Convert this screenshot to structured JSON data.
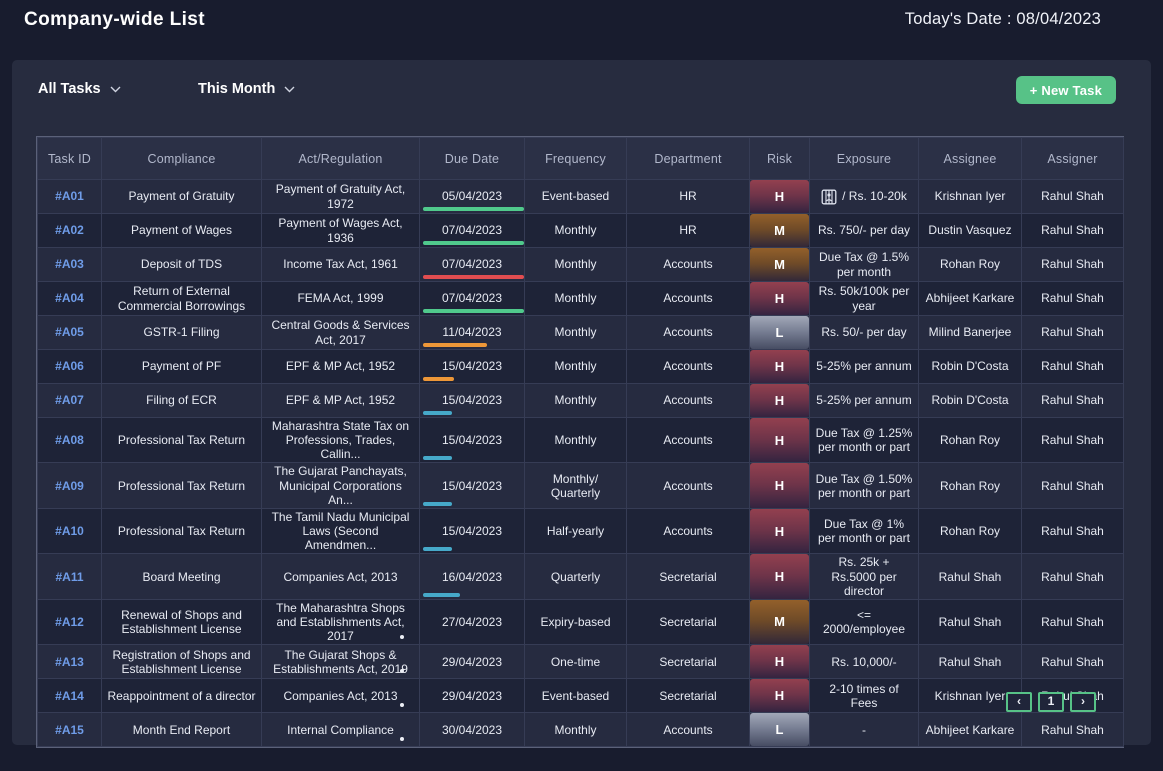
{
  "page": {
    "title": "Company-wide List",
    "date_label": "Today's Date : 08/04/2023"
  },
  "filters": {
    "tasks_filter": "All Tasks",
    "period_filter": "This Month",
    "new_task_label": "+ New Task"
  },
  "table": {
    "columns": [
      "Task ID",
      "Compliance",
      "Act/Regulation",
      "Due Date",
      "Frequency",
      "Department",
      "Risk",
      "Exposure",
      "Assignee",
      "Assigner"
    ],
    "rows": [
      {
        "id": "#A01",
        "compliance": "Payment of Gratuity",
        "act": "Payment of Gratuity Act, 1972",
        "due": "05/04/2023",
        "due_status": "green",
        "due_bar": 97,
        "frequency": "Event-based",
        "department": "HR",
        "risk": "H",
        "exposure": "/ Rs. 10-20k",
        "exposure_icon": "jail-icon",
        "assignee": "Krishnan Iyer",
        "assigner": "Rahul Shah"
      },
      {
        "id": "#A02",
        "compliance": "Payment of Wages",
        "act": "Payment of Wages Act, 1936",
        "due": "07/04/2023",
        "due_status": "green",
        "due_bar": 97,
        "frequency": "Monthly",
        "department": "HR",
        "risk": "M",
        "exposure": "Rs. 750/- per day",
        "assignee": "Dustin Vasquez",
        "assigner": "Rahul Shah"
      },
      {
        "id": "#A03",
        "compliance": "Deposit of TDS",
        "act": "Income Tax Act, 1961",
        "due": "07/04/2023",
        "due_status": "red",
        "due_bar": 97,
        "frequency": "Monthly",
        "department": "Accounts",
        "risk": "M",
        "exposure": "Due Tax @ 1.5% per month",
        "assignee": "Rohan Roy",
        "assigner": "Rahul Shah"
      },
      {
        "id": "#A04",
        "compliance": "Return of External Commercial Borrowings",
        "act": "FEMA Act, 1999",
        "due": "07/04/2023",
        "due_status": "green",
        "due_bar": 97,
        "frequency": "Monthly",
        "department": "Accounts",
        "risk": "H",
        "exposure": "Rs. 50k/100k per year",
        "assignee": "Abhijeet Karkare",
        "assigner": "Rahul Shah"
      },
      {
        "id": "#A05",
        "compliance": "GSTR-1 Filing",
        "act": "Central Goods & Services Act, 2017",
        "due": "11/04/2023",
        "due_status": "orange",
        "due_bar": 62,
        "frequency": "Monthly",
        "department": "Accounts",
        "risk": "L",
        "exposure": "Rs. 50/- per day",
        "assignee": "Milind Banerjee",
        "assigner": "Rahul Shah"
      },
      {
        "id": "#A06",
        "compliance": "Payment of PF",
        "act": "EPF & MP Act, 1952",
        "due": "15/04/2023",
        "due_status": "orange",
        "due_bar": 30,
        "frequency": "Monthly",
        "department": "Accounts",
        "risk": "H",
        "exposure": "5-25% per annum",
        "assignee": "Robin D'Costa",
        "assigner": "Rahul Shah"
      },
      {
        "id": "#A07",
        "compliance": "Filing of ECR",
        "act": "EPF & MP Act, 1952",
        "due": "15/04/2023",
        "due_status": "teal",
        "due_bar": 28,
        "frequency": "Monthly",
        "department": "Accounts",
        "risk": "H",
        "exposure": "5-25% per annum",
        "assignee": "Robin D'Costa",
        "assigner": "Rahul Shah"
      },
      {
        "id": "#A08",
        "compliance": "Professional Tax Return",
        "act": "Maharashtra State Tax on Professions, Trades, Callin...",
        "due": "15/04/2023",
        "due_status": "teal",
        "due_bar": 28,
        "frequency": "Monthly",
        "department": "Accounts",
        "risk": "H",
        "exposure": "Due Tax @ 1.25% per month or part",
        "assignee": "Rohan Roy",
        "assigner": "Rahul Shah"
      },
      {
        "id": "#A09",
        "compliance": "Professional Tax Return",
        "act": "The Gujarat Panchayats, Municipal Corporations An...",
        "due": "15/04/2023",
        "due_status": "teal",
        "due_bar": 28,
        "frequency": "Monthly/ Quarterly",
        "department": "Accounts",
        "risk": "H",
        "exposure": "Due Tax @ 1.50% per month or part",
        "assignee": "Rohan Roy",
        "assigner": "Rahul Shah"
      },
      {
        "id": "#A10",
        "compliance": "Professional Tax Return",
        "act": "The Tamil Nadu Municipal Laws (Second Amendmen...",
        "due": "15/04/2023",
        "due_status": "teal",
        "due_bar": 28,
        "frequency": "Half-yearly",
        "department": "Accounts",
        "risk": "H",
        "exposure": "Due Tax @ 1% per month or part",
        "assignee": "Rohan Roy",
        "assigner": "Rahul Shah"
      },
      {
        "id": "#A11",
        "compliance": "Board Meeting",
        "act": "Companies Act, 2013",
        "due": "16/04/2023",
        "due_status": "teal",
        "due_bar": 36,
        "frequency": "Quarterly",
        "department": "Secretarial",
        "risk": "H",
        "exposure": "Rs. 25k + Rs.5000 per director",
        "assignee": "Rahul Shah",
        "assigner": "Rahul Shah"
      },
      {
        "id": "#A12",
        "compliance": "Renewal of Shops and Establishment License",
        "act": "The Maharashtra Shops and Establishments Act, 2017",
        "act_marker": true,
        "due": "27/04/2023",
        "due_bar": 0,
        "frequency": "Expiry-based",
        "department": "Secretarial",
        "risk": "M",
        "exposure": "<= 2000/employee",
        "assignee": "Rahul Shah",
        "assigner": "Rahul Shah"
      },
      {
        "id": "#A13",
        "compliance": "Registration of Shops and Establishment License",
        "act": "The Gujarat Shops & Establishments Act, 2019",
        "act_marker": true,
        "due": "29/04/2023",
        "due_bar": 0,
        "frequency": "One-time",
        "department": "Secretarial",
        "risk": "H",
        "exposure": "Rs. 10,000/-",
        "assignee": "Rahul Shah",
        "assigner": "Rahul Shah"
      },
      {
        "id": "#A14",
        "compliance": "Reappointment of a director",
        "act": "Companies Act, 2013",
        "act_marker": true,
        "due": "29/04/2023",
        "due_bar": 0,
        "frequency": "Event-based",
        "department": "Secretarial",
        "risk": "H",
        "exposure": "2-10 times of Fees",
        "assignee": "Krishnan Iyer",
        "assigner": "Rahul Shah"
      },
      {
        "id": "#A15",
        "compliance": "Month End Report",
        "act": "Internal Compliance",
        "act_marker": true,
        "due": "30/04/2023",
        "due_bar": 0,
        "frequency": "Monthly",
        "department": "Accounts",
        "risk": "L",
        "exposure": "-",
        "assignee": "Abhijeet Karkare",
        "assigner": "Rahul Shah"
      }
    ]
  },
  "pagination": {
    "prev_label": "‹",
    "page_label": "1",
    "next_label": "›"
  },
  "colors": {
    "accent_green": "#57c287",
    "bar_green": "#50c98c",
    "bar_red": "#e14d50",
    "bar_orange": "#ed9738",
    "bar_teal": "#46a9c9",
    "risk_high": "#93404f",
    "risk_medium": "#93602a",
    "risk_low": "#a2a8b8",
    "task_id_blue": "#6f9ce8"
  }
}
